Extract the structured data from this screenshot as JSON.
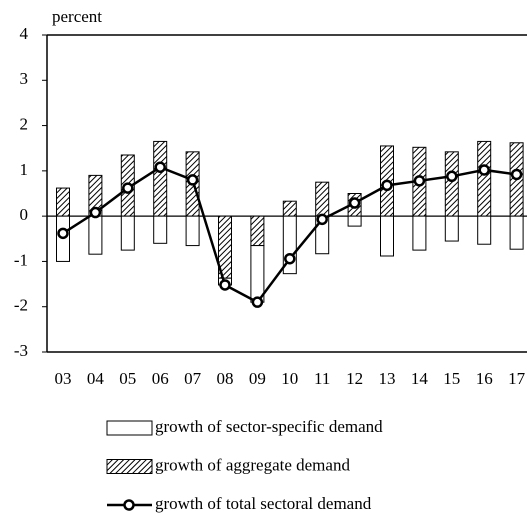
{
  "chart_data": {
    "type": "bar",
    "stacked": true,
    "y_label": "percent",
    "categories": [
      "03",
      "04",
      "05",
      "06",
      "07",
      "08",
      "09",
      "10",
      "11",
      "12",
      "13",
      "14",
      "15",
      "16",
      "17"
    ],
    "series": [
      {
        "name": "growth of sector-specific demand",
        "type": "bar",
        "color": "#ffffff",
        "values": [
          -1.0,
          -0.84,
          -0.75,
          -0.6,
          -0.65,
          -0.15,
          -1.25,
          -1.27,
          -0.83,
          -0.22,
          -0.88,
          -0.75,
          -0.55,
          -0.62,
          -0.73
        ]
      },
      {
        "name": "growth of aggregate demand",
        "type": "bar",
        "color": "#000000",
        "pattern": "hatch",
        "values": [
          0.62,
          0.9,
          1.35,
          1.65,
          1.42,
          -1.37,
          -0.65,
          0.33,
          0.75,
          0.5,
          1.55,
          1.52,
          1.42,
          1.65,
          1.62
        ]
      },
      {
        "name": "growth of total sectoral demand",
        "type": "line",
        "color": "#000000",
        "values": [
          -0.38,
          0.08,
          0.62,
          1.08,
          0.8,
          -1.52,
          -1.9,
          -0.94,
          -0.07,
          0.29,
          0.68,
          0.78,
          0.88,
          1.02,
          0.92
        ]
      }
    ],
    "ylim": [
      -3,
      4
    ],
    "yticks": [
      -3,
      -2,
      -1,
      0,
      1,
      2,
      3,
      4
    ]
  }
}
